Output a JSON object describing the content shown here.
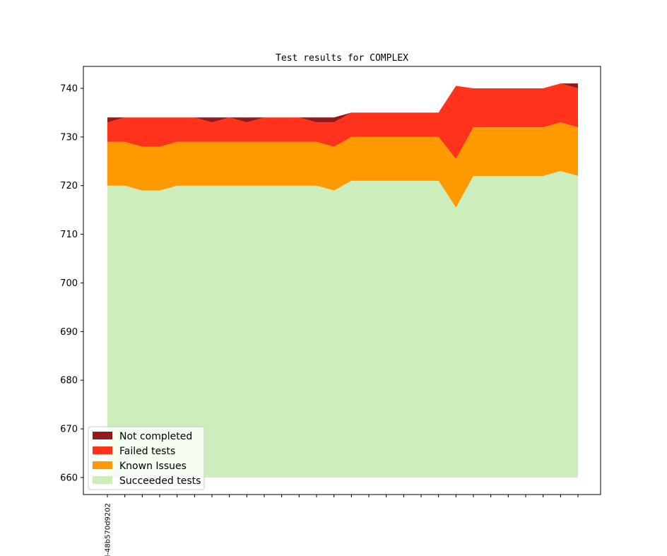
{
  "chart_data": {
    "type": "area",
    "title": "Test results for COMPLEX",
    "xlabel": "",
    "ylabel": "",
    "ylim": [
      656.5,
      744.5
    ],
    "yticks": [
      660,
      670,
      680,
      690,
      700,
      710,
      720,
      730,
      740
    ],
    "baseline": 660,
    "x_tick_labels": [
      "l-48b570d9202",
      "",
      "",
      "",
      "",
      "",
      "",
      "",
      "",
      "",
      "",
      "",
      "",
      "",
      "",
      "",
      "",
      "",
      "",
      "",
      "",
      "",
      "",
      "",
      "",
      "",
      "",
      ""
    ],
    "grid": false,
    "legend_position": "lower-left",
    "series": [
      {
        "name": "Succeeded tests",
        "color": "#cdedbd",
        "values": [
          720,
          720,
          719,
          719,
          720,
          720,
          720,
          720,
          720,
          720,
          720,
          720,
          720,
          719,
          721,
          721,
          721,
          721,
          721,
          721,
          715.5,
          722,
          722,
          722,
          722,
          722,
          723,
          722
        ]
      },
      {
        "name": "Known Issues",
        "color": "#fe9900",
        "values": [
          9,
          9,
          9,
          9,
          9,
          9,
          9,
          9,
          9,
          9,
          9,
          9,
          9,
          9,
          9,
          9,
          9,
          9,
          9,
          9,
          10,
          10,
          10,
          10,
          10,
          10,
          10,
          10
        ]
      },
      {
        "name": "Failed tests",
        "color": "#ff331b",
        "values": [
          4,
          5,
          6,
          6,
          5,
          5,
          4,
          5,
          4,
          5,
          5,
          5,
          4,
          5,
          5,
          5,
          5,
          5,
          5,
          5,
          15,
          8,
          8,
          8,
          8,
          8,
          8,
          8
        ]
      },
      {
        "name": "Not completed",
        "color": "#921a1c",
        "values": [
          1,
          0,
          0,
          0,
          0,
          0,
          1,
          0,
          1,
          0,
          0,
          0,
          1,
          1,
          0,
          0,
          0,
          0,
          0,
          0,
          0,
          0,
          0,
          0,
          0,
          0,
          0,
          1
        ]
      }
    ],
    "legend_order": [
      "Not completed",
      "Failed tests",
      "Known Issues",
      "Succeeded tests"
    ]
  }
}
